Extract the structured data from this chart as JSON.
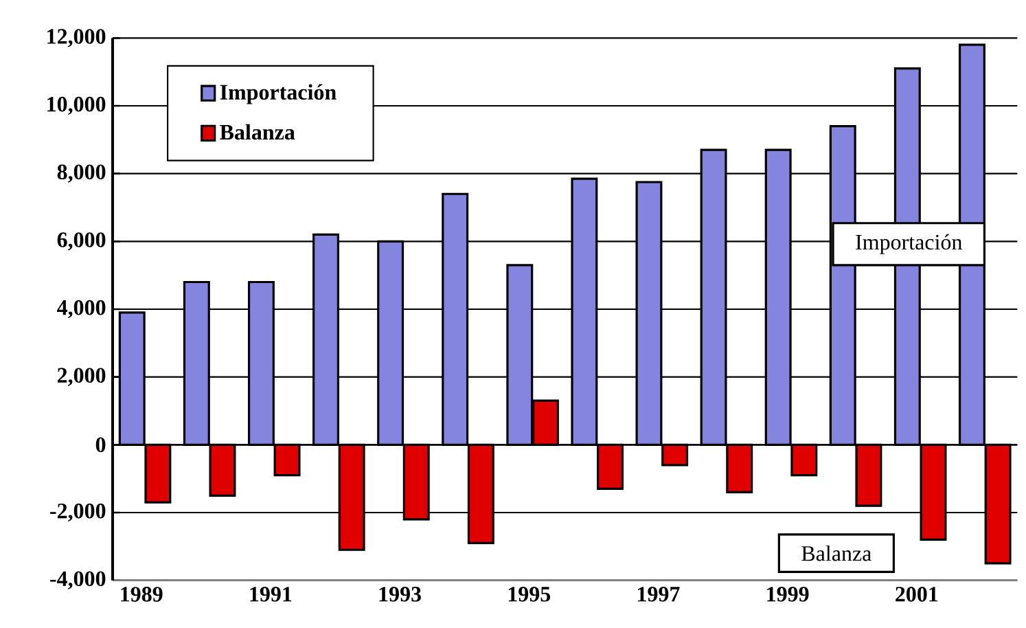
{
  "chart_data": {
    "type": "bar",
    "categories": [
      "1989",
      null,
      "1991",
      null,
      "1993",
      null,
      "1995",
      null,
      "1997",
      null,
      "1999",
      null,
      "2001",
      null
    ],
    "series": [
      {
        "name": "Importación",
        "color": "#8585e0",
        "values": [
          3900,
          4800,
          4800,
          6200,
          6000,
          7400,
          5300,
          7850,
          7750,
          8700,
          8700,
          9400,
          11100,
          11800
        ]
      },
      {
        "name": "Balanza",
        "color": "#e00000",
        "values": [
          -1700,
          -1500,
          -900,
          -3100,
          -2200,
          -2900,
          1300,
          -1300,
          -600,
          -1400,
          -900,
          -1800,
          -2800,
          -3500
        ]
      }
    ],
    "ylim": [
      -4000,
      12000
    ],
    "yticks": [
      {
        "value": -4000,
        "label": "-4,000"
      },
      {
        "value": -2000,
        "label": "-2,000"
      },
      {
        "value": 0,
        "label": "0"
      },
      {
        "value": 2000,
        "label": "2,000"
      },
      {
        "value": 4000,
        "label": "4,000"
      },
      {
        "value": 6000,
        "label": "6,000"
      },
      {
        "value": 8000,
        "label": "8,000"
      },
      {
        "value": 10000,
        "label": "10,000"
      },
      {
        "value": 12000,
        "label": "12,000"
      }
    ],
    "grid": "y",
    "legend": "top left",
    "annotations": [
      "Importación",
      "Balanza"
    ]
  }
}
